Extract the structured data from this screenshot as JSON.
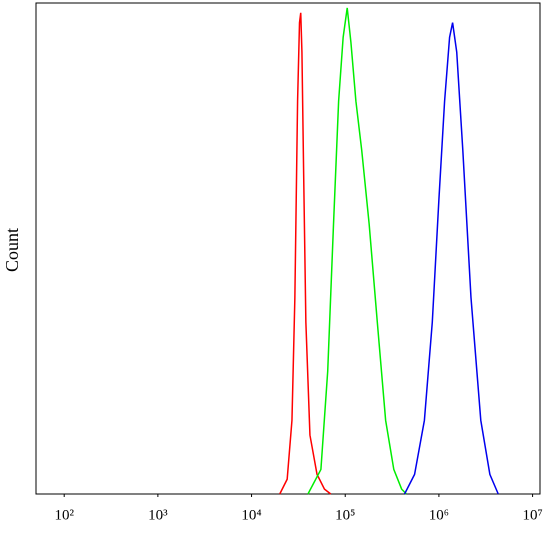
{
  "chart_data": {
    "type": "line",
    "y_label": "Count",
    "x_log": true,
    "xlim": [
      50,
      12000000
    ],
    "ylim": [
      0,
      100
    ],
    "xticks": [
      {
        "value": 100,
        "label": "10²"
      },
      {
        "value": 1000,
        "label": "10³"
      },
      {
        "value": 10000,
        "label": "10⁴"
      },
      {
        "value": 100000,
        "label": "10⁵"
      },
      {
        "value": 1000000,
        "label": "10⁶"
      },
      {
        "value": 10000000,
        "label": "10⁷"
      }
    ],
    "series": [
      {
        "color": "#ff0000",
        "x": [
          20000,
          24000,
          27000,
          29000,
          31000,
          32500,
          33500,
          34500,
          36000,
          38000,
          42000,
          50000,
          60000,
          70000
        ],
        "values": [
          0,
          3,
          15,
          40,
          80,
          96,
          98,
          90,
          65,
          35,
          12,
          4,
          1,
          0
        ]
      },
      {
        "color": "#00ee00",
        "x": [
          40000,
          55000,
          65000,
          75000,
          85000,
          95000,
          105000,
          115000,
          130000,
          150000,
          180000,
          220000,
          270000,
          330000,
          400000,
          450000
        ],
        "values": [
          0,
          5,
          25,
          55,
          80,
          93,
          99,
          92,
          80,
          70,
          55,
          35,
          15,
          5,
          1,
          0
        ]
      },
      {
        "color": "#0000ee",
        "x": [
          430000,
          550000,
          700000,
          850000,
          1000000,
          1150000,
          1300000,
          1400000,
          1550000,
          1800000,
          2200000,
          2800000,
          3500000,
          4300000
        ],
        "values": [
          0,
          4,
          15,
          35,
          60,
          80,
          93,
          96,
          90,
          70,
          40,
          15,
          4,
          0
        ]
      }
    ]
  }
}
